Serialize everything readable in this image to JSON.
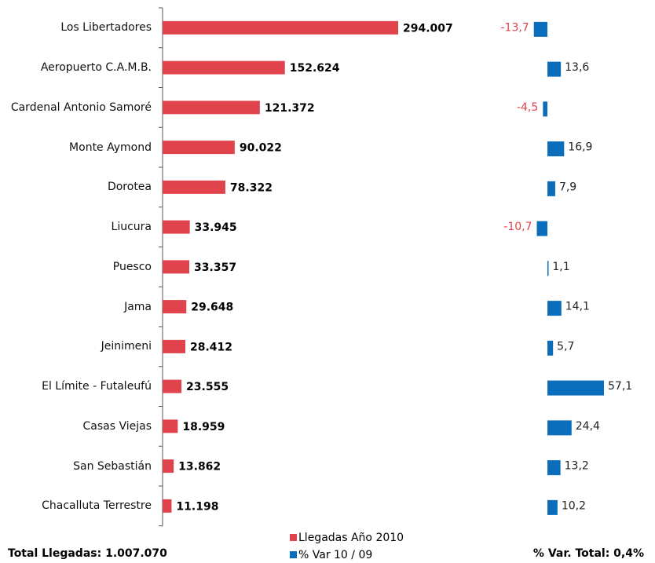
{
  "chart_data": {
    "type": "bar",
    "orientation": "horizontal",
    "categories": [
      "Los Libertadores",
      "Aeropuerto C.A.M.B.",
      "Cardenal Antonio Samoré",
      "Monte Aymond",
      "Dorotea",
      "Liucura",
      "Puesco",
      "Jama",
      "Jeinimeni",
      "El Límite - Futaleufú",
      "Casas Viejas",
      "San Sebastián",
      "Chacalluta Terrestre"
    ],
    "series": [
      {
        "name": "Llegadas Año 2010",
        "color": "#e0434b",
        "values": [
          294007,
          152624,
          121372,
          90022,
          78322,
          33945,
          33357,
          29648,
          28412,
          23555,
          18959,
          13862,
          11198
        ],
        "value_labels": [
          "294.007",
          "152.624",
          "121.372",
          "90.022",
          "78.322",
          "33.945",
          "33.357",
          "29.648",
          "28.412",
          "23.555",
          "18.959",
          "13.862",
          "11.198"
        ]
      },
      {
        "name": "% Var 10 / 09",
        "color": "#0a6ebd",
        "values": [
          -13.7,
          13.6,
          -4.5,
          16.9,
          7.9,
          -10.7,
          1.1,
          14.1,
          5.7,
          57.1,
          24.4,
          13.2,
          10.2
        ],
        "value_labels": [
          "-13,7",
          "13,6",
          "-4,5",
          "16,9",
          "7,9",
          "-10,7",
          "1,1",
          "14,1",
          "5,7",
          "57,1",
          "24,4",
          "13,2",
          "10,2"
        ]
      }
    ],
    "negative_label_color": "#e0434b",
    "total_left": "Total Llegadas: 1.007.070",
    "total_right": "% Var. Total: 0,4%"
  }
}
